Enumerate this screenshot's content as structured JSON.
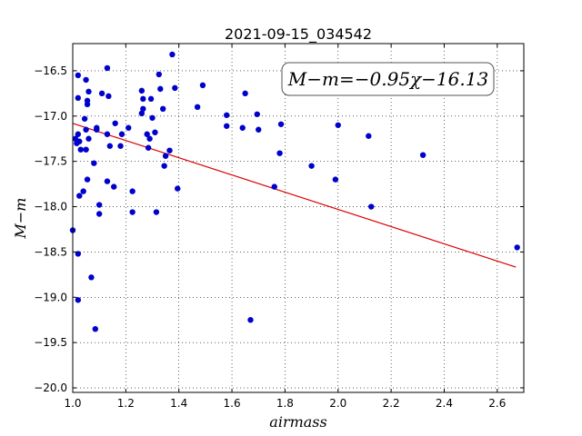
{
  "chart_data": {
    "type": "scatter",
    "title": "2021-09-15_034542",
    "xlabel": "airmass",
    "ylabel": "M−m",
    "xlim": [
      1.0,
      2.7
    ],
    "ylim": [
      -20.05,
      -16.2
    ],
    "y_inverted": true,
    "grid": true,
    "xticks": [
      "1.0",
      "1.2",
      "1.4",
      "1.6",
      "1.8",
      "2.0",
      "2.2",
      "2.4",
      "2.6"
    ],
    "yticks": [
      "−16.5",
      "−17.0",
      "−17.5",
      "−18.0",
      "−18.5",
      "−19.0",
      "−19.5",
      "−20.0"
    ],
    "annotation": "M−m=−0.95χ−16.13",
    "point_color": "#0000cc",
    "line_color": "#dd0000",
    "fit": {
      "slope": -0.95,
      "intercept": -16.13,
      "x_range": [
        1.0,
        2.67
      ]
    },
    "points": [
      [
        1.0,
        -18.26
      ],
      [
        1.01,
        -17.25
      ],
      [
        1.015,
        -17.3
      ],
      [
        1.02,
        -16.55
      ],
      [
        1.02,
        -16.8
      ],
      [
        1.02,
        -17.2
      ],
      [
        1.025,
        -17.28
      ],
      [
        1.025,
        -17.88
      ],
      [
        1.02,
        -18.52
      ],
      [
        1.02,
        -19.03
      ],
      [
        1.03,
        -17.37
      ],
      [
        1.04,
        -17.83
      ],
      [
        1.045,
        -17.03
      ],
      [
        1.05,
        -17.15
      ],
      [
        1.05,
        -16.6
      ],
      [
        1.055,
        -16.83
      ],
      [
        1.055,
        -16.87
      ],
      [
        1.06,
        -16.73
      ],
      [
        1.05,
        -17.37
      ],
      [
        1.06,
        -17.25
      ],
      [
        1.055,
        -17.7
      ],
      [
        1.07,
        -18.78
      ],
      [
        1.08,
        -17.52
      ],
      [
        1.09,
        -17.13
      ],
      [
        1.09,
        -17.15
      ],
      [
        1.1,
        -17.98
      ],
      [
        1.1,
        -18.08
      ],
      [
        1.085,
        -19.35
      ],
      [
        1.11,
        -16.75
      ],
      [
        1.13,
        -16.47
      ],
      [
        1.13,
        -17.2
      ],
      [
        1.135,
        -16.78
      ],
      [
        1.13,
        -17.72
      ],
      [
        1.14,
        -17.33
      ],
      [
        1.16,
        -17.08
      ],
      [
        1.155,
        -17.78
      ],
      [
        1.18,
        -17.33
      ],
      [
        1.185,
        -17.2
      ],
      [
        1.21,
        -17.13
      ],
      [
        1.225,
        -17.83
      ],
      [
        1.225,
        -18.06
      ],
      [
        1.26,
        -16.72
      ],
      [
        1.265,
        -16.81
      ],
      [
        1.265,
        -16.92
      ],
      [
        1.26,
        -16.97
      ],
      [
        1.28,
        -17.2
      ],
      [
        1.285,
        -17.35
      ],
      [
        1.29,
        -17.25
      ],
      [
        1.295,
        -16.81
      ],
      [
        1.3,
        -17.02
      ],
      [
        1.31,
        -17.18
      ],
      [
        1.315,
        -18.06
      ],
      [
        1.325,
        -16.54
      ],
      [
        1.33,
        -16.7
      ],
      [
        1.34,
        -16.92
      ],
      [
        1.345,
        -17.55
      ],
      [
        1.35,
        -17.44
      ],
      [
        1.365,
        -17.38
      ],
      [
        1.375,
        -16.32
      ],
      [
        1.385,
        -16.69
      ],
      [
        1.395,
        -17.8
      ],
      [
        1.47,
        -16.9
      ],
      [
        1.49,
        -16.66
      ],
      [
        1.58,
        -16.99
      ],
      [
        1.58,
        -17.11
      ],
      [
        1.64,
        -17.13
      ],
      [
        1.65,
        -16.75
      ],
      [
        1.67,
        -19.25
      ],
      [
        1.695,
        -16.98
      ],
      [
        1.7,
        -17.15
      ],
      [
        1.76,
        -17.78
      ],
      [
        1.78,
        -17.41
      ],
      [
        1.785,
        -17.09
      ],
      [
        1.9,
        -17.55
      ],
      [
        1.99,
        -17.7
      ],
      [
        2.0,
        -17.1
      ],
      [
        2.115,
        -17.22
      ],
      [
        2.125,
        -18.0
      ],
      [
        2.32,
        -17.43
      ],
      [
        2.675,
        -18.45
      ]
    ]
  }
}
